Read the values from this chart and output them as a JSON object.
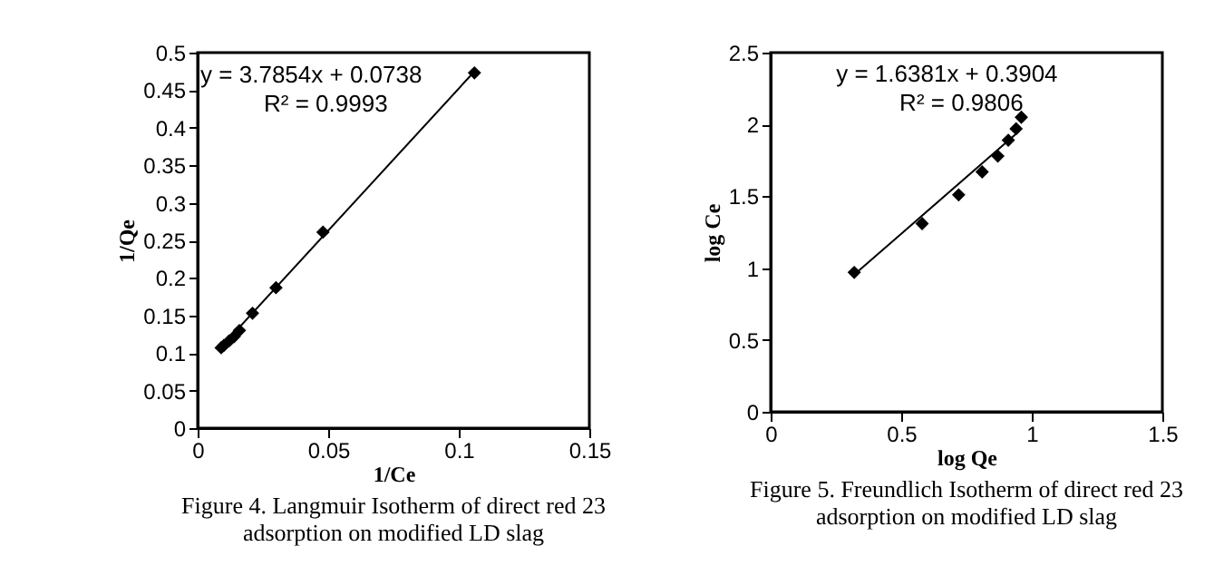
{
  "chart_data": [
    {
      "type": "scatter",
      "xlabel": "1/Ce",
      "ylabel": "1/Qe",
      "marker": "diamond",
      "grid": false,
      "legend": false,
      "xlim": [
        0,
        0.15
      ],
      "xticks": [
        0,
        0.05,
        0.1,
        0.15
      ],
      "ylim": [
        0,
        0.5
      ],
      "yticks": [
        0,
        0.05,
        0.1,
        0.15,
        0.2,
        0.25,
        0.3,
        0.35,
        0.4,
        0.45,
        0.5
      ],
      "series": [
        {
          "color": "#000000",
          "x": [
            0.009,
            0.01,
            0.012,
            0.014,
            0.016,
            0.021,
            0.03,
            0.048,
            0.106
          ],
          "values": [
            0.107,
            0.11,
            0.116,
            0.122,
            0.13,
            0.153,
            0.187,
            0.261,
            0.473
          ]
        },
        {
          "type": "line",
          "marker": "none",
          "color": "#000000",
          "x": [
            0.008,
            0.106
          ],
          "values": [
            0.104,
            0.475
          ]
        }
      ],
      "annotations": [
        "y = 3.7854x + 0.0738",
        "R² = 0.9993",
        "Figure 4. Langmuir Isotherm of direct red 23 adsorption on modified LD slag"
      ]
    },
    {
      "type": "scatter",
      "xlabel": "log Qe",
      "ylabel": "log Ce",
      "marker": "diamond",
      "grid": false,
      "legend": false,
      "xlim": [
        0,
        1.5
      ],
      "xticks": [
        0,
        0.5,
        1,
        1.5
      ],
      "ylim": [
        0,
        2.5
      ],
      "yticks": [
        0,
        0.5,
        1,
        1.5,
        2,
        2.5
      ],
      "series": [
        {
          "color": "#000000",
          "x": [
            0.32,
            0.58,
            0.72,
            0.81,
            0.87,
            0.91,
            0.94,
            0.96
          ],
          "values": [
            0.97,
            1.31,
            1.51,
            1.67,
            1.78,
            1.89,
            1.97,
            2.05
          ]
        },
        {
          "type": "line",
          "marker": "none",
          "color": "#000000",
          "x": [
            0.33,
            0.95
          ],
          "values": [
            0.97,
            1.95
          ]
        }
      ],
      "annotations": [
        "y = 1.6381x + 0.3904",
        "R² = 0.9806",
        "Figure 5. Freundlich Isotherm of direct red 23 adsorption on modified LD slag"
      ]
    }
  ]
}
